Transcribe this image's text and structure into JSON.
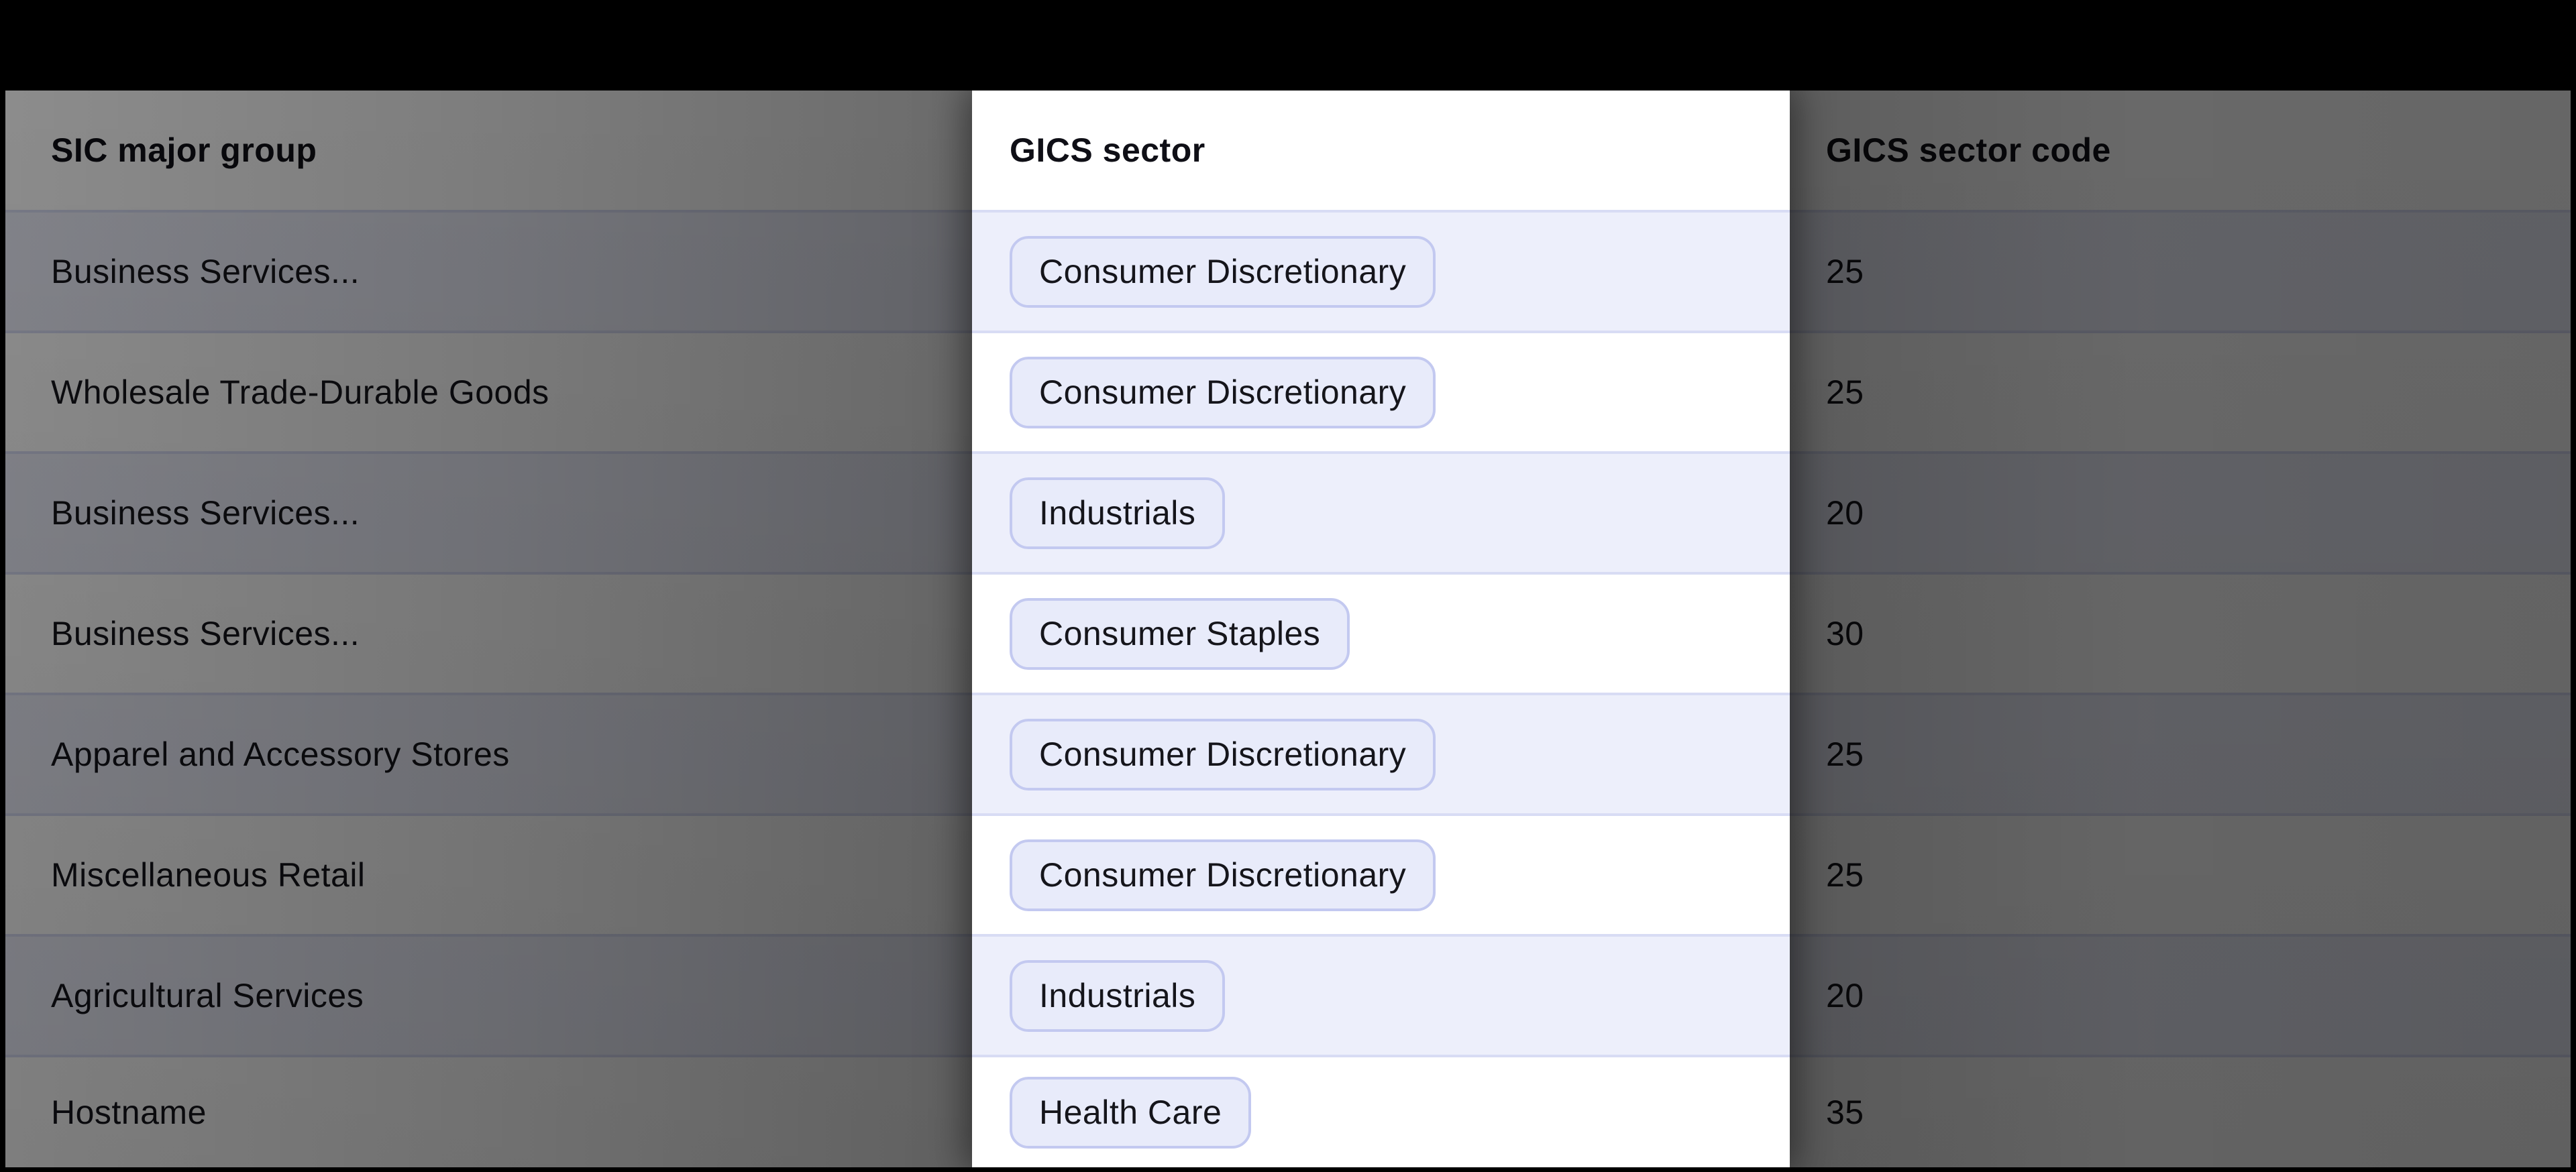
{
  "header": {
    "columns": [
      "SIC major group",
      "GICS sector",
      "GICS sector code"
    ]
  },
  "rows": [
    {
      "sic": "Business Services...",
      "gics": "Consumer Discretionary",
      "code": "25"
    },
    {
      "sic": "Wholesale Trade-Durable Goods",
      "gics": "Consumer Discretionary",
      "code": "25"
    },
    {
      "sic": "Business Services...",
      "gics": "Industrials",
      "code": "20"
    },
    {
      "sic": "Business Services...",
      "gics": "Consumer Staples",
      "code": "30"
    },
    {
      "sic": "Apparel and Accessory Stores",
      "gics": "Consumer Discretionary",
      "code": "25"
    },
    {
      "sic": "Miscellaneous Retail",
      "gics": "Consumer Discretionary",
      "code": "25"
    },
    {
      "sic": "Agricultural Services",
      "gics": "Industrials",
      "code": "20"
    },
    {
      "sic": "Hostname",
      "gics": "Health Care",
      "code": "35"
    }
  ],
  "highlight": {
    "column": "GICS sector",
    "column_index": 1
  },
  "colors": {
    "frame": "#000000",
    "row_white": "#ffffff",
    "row_alt": "#edeffb",
    "divider": "#d8dcf4",
    "chip_bg": "#e8ebfa",
    "chip_border": "#c3c9f0",
    "text": "#15151b"
  }
}
